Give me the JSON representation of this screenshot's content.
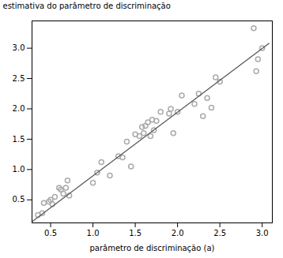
{
  "chart_data": {
    "type": "scatter",
    "xlabel": "parâmetro de discriminação (a)",
    "ylabel": "estimativa do parâmetro de discriminação",
    "series": [
      {
        "type": "scatter",
        "marker": "circle",
        "color": "#aaaaaa",
        "x": [
          0.35,
          0.4,
          0.42,
          0.48,
          0.5,
          0.52,
          0.55,
          0.6,
          0.62,
          0.65,
          0.68,
          0.7,
          0.72,
          1.0,
          1.05,
          1.1,
          1.2,
          1.3,
          1.35,
          1.4,
          1.45,
          1.5,
          1.55,
          1.58,
          1.6,
          1.62,
          1.65,
          1.68,
          1.7,
          1.72,
          1.75,
          1.8,
          1.9,
          1.92,
          1.95,
          2.0,
          2.05,
          2.2,
          2.25,
          2.3,
          2.35,
          2.4,
          2.45,
          2.5,
          2.9,
          2.93,
          2.95,
          3.0
        ],
        "values": [
          0.25,
          0.28,
          0.45,
          0.47,
          0.5,
          0.43,
          0.55,
          0.7,
          0.67,
          0.6,
          0.7,
          0.82,
          0.57,
          0.78,
          0.95,
          1.12,
          0.9,
          1.22,
          1.2,
          1.46,
          1.05,
          1.58,
          1.55,
          1.7,
          1.6,
          1.72,
          1.78,
          1.55,
          1.82,
          1.65,
          1.8,
          1.95,
          1.92,
          2.0,
          1.6,
          1.95,
          2.22,
          2.08,
          2.25,
          1.88,
          2.18,
          2.02,
          2.52,
          2.45,
          3.33,
          2.62,
          2.82,
          3.0
        ]
      },
      {
        "type": "line",
        "color": "#555555",
        "x": [
          0.28,
          3.08
        ],
        "values": [
          0.14,
          3.08
        ]
      }
    ],
    "xlim": [
      0.28,
      3.12
    ],
    "ylim": [
      0.12,
      3.45
    ],
    "xticks": [
      0.5,
      {
        "value": 1.0,
        "label": "1.0"
      },
      1.5,
      {
        "value": 2.0,
        "label": "2.0"
      },
      2.5,
      {
        "value": 3.0,
        "label": "3.0"
      }
    ],
    "yticks": [
      0.5,
      {
        "value": 1.0,
        "label": "1.0"
      },
      1.5,
      {
        "value": 2.0,
        "label": "2.0"
      },
      2.5,
      {
        "value": 3.0,
        "label": "3.0"
      }
    ],
    "grid": false
  }
}
